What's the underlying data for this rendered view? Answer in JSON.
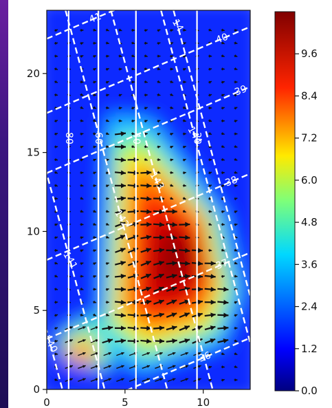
{
  "chart_data": {
    "type": "heatmap",
    "title": "",
    "xlabel": "",
    "ylabel": "",
    "xlim": [
      0,
      13
    ],
    "ylim": [
      0,
      24
    ],
    "xticks": [
      0,
      5,
      10
    ],
    "yticks": [
      0,
      5,
      10,
      15,
      20
    ],
    "colorbar": {
      "colormap": "jet",
      "range": [
        0.0,
        10.8
      ],
      "ticks": [
        "0.0",
        "1.2",
        "2.4",
        "3.6",
        "4.8",
        "6.0",
        "7.2",
        "8.4",
        "9.6"
      ]
    },
    "field_peak": {
      "x": 8.5,
      "y": 9.0,
      "value": 10.8
    },
    "field_shape": "triangular hot region spanning x 4-12, y 3-16; secondary warm spot near x 2, y 2.5",
    "vertical_contours": [
      {
        "label": "80",
        "x": 1.4
      },
      {
        "label": "60",
        "x": 3.3
      },
      {
        "label": "40",
        "x": 5.7
      },
      {
        "label": "20",
        "x": 9.6
      }
    ],
    "dashed_contour_family_a": [
      {
        "label": "41",
        "y_at_x0": 22.2,
        "slope": 0.42
      },
      {
        "label": "40",
        "y_at_x0": 17.5,
        "slope": 0.42
      },
      {
        "label": "39",
        "y_at_x0": 13.7,
        "slope": 0.42
      },
      {
        "label": "38",
        "y_at_x0": 8.2,
        "slope": 0.42
      },
      {
        "label": "37",
        "y_at_x0": 3.2,
        "slope": 0.42
      },
      {
        "label": "36",
        "y_at_x0": -2.2,
        "slope": 0.42
      }
    ],
    "dashed_contour_family_b": [
      {
        "label": "140",
        "x_at_y0": 3.0,
        "dxdy": -0.13
      },
      {
        "label": "141",
        "x_at_y0": 5.7,
        "dxdy": -0.13
      },
      {
        "label": "142",
        "x_at_y0": 9.7,
        "dxdy": -0.13
      },
      {
        "label": "143",
        "x_at_y0": 12.6,
        "dxdy": -0.13
      },
      {
        "label": "144",
        "x_at_y0": 15.8,
        "dxdy": -0.13
      },
      {
        "label": "14",
        "x_at_y0": 16.6,
        "dxdy": -0.13
      }
    ],
    "quiver": "arrows point mainly to the right, strongest in the hot region"
  }
}
